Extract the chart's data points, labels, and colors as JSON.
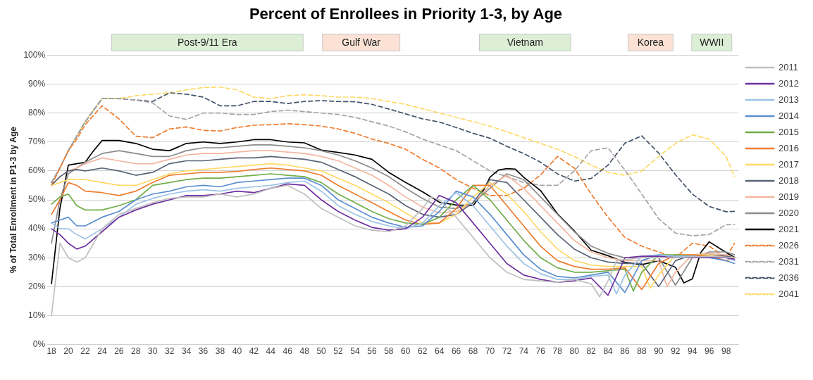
{
  "chart_data": {
    "type": "line",
    "title": "Percent of Enrollees in Priority 1-3, by Age",
    "ylabel": "% of Total Enrollment in P1-3 by Age",
    "xlim": [
      17.5,
      99.5
    ],
    "xticks": [
      18,
      20,
      22,
      24,
      26,
      28,
      30,
      32,
      34,
      36,
      38,
      40,
      42,
      44,
      46,
      48,
      50,
      52,
      54,
      56,
      58,
      60,
      62,
      64,
      66,
      68,
      70,
      72,
      74,
      76,
      78,
      80,
      82,
      84,
      86,
      88,
      90,
      92,
      94,
      96,
      98
    ],
    "ylim": [
      0,
      100
    ],
    "yticks": [
      {
        "value": 0,
        "label": "0%"
      },
      {
        "value": 10,
        "label": "10%"
      },
      {
        "value": 20,
        "label": "20%"
      },
      {
        "value": 30,
        "label": "30%"
      },
      {
        "value": 40,
        "label": "40%"
      },
      {
        "value": 50,
        "label": "50%"
      },
      {
        "value": 60,
        "label": "60%"
      },
      {
        "value": 70,
        "label": "70%"
      },
      {
        "value": 80,
        "label": "80%"
      },
      {
        "value": 90,
        "label": "90%"
      },
      {
        "value": 100,
        "label": "100%"
      }
    ],
    "grid": "y",
    "legend": "right",
    "marker": "none",
    "annotations": [
      "Post-9/11 Era",
      "Gulf War",
      "Vietnam",
      "Korea",
      "WWII"
    ],
    "series": [
      {
        "name": "2011",
        "color": "#bfbfbf",
        "line_style": "solid",
        "x": [
          18,
          19,
          20,
          21,
          22,
          24,
          26,
          28,
          30,
          32,
          34,
          36,
          38,
          40,
          42,
          44,
          46,
          48,
          50,
          52,
          54,
          56,
          58,
          60,
          62,
          63,
          64,
          66,
          68,
          70,
          72,
          74,
          76,
          78,
          80,
          82,
          83,
          84,
          85,
          88,
          92,
          96,
          99
        ],
        "values": [
          10,
          35,
          30,
          28.5,
          30,
          40,
          45,
          47,
          49,
          50.5,
          51,
          51,
          52,
          51,
          52,
          54,
          55,
          52,
          47,
          44,
          41,
          39.5,
          39,
          41,
          47,
          51,
          50,
          44,
          37,
          30,
          25,
          22.5,
          22,
          21.5,
          22.5,
          21,
          16.5,
          22,
          29,
          30,
          30,
          30.5,
          30
        ]
      },
      {
        "name": "2012",
        "color": "#7030a0",
        "line_style": "solid",
        "x": [
          18,
          19,
          20,
          21,
          22,
          24,
          26,
          28,
          30,
          32,
          34,
          36,
          38,
          40,
          42,
          44,
          46,
          48,
          50,
          52,
          54,
          56,
          58,
          60,
          62,
          64,
          66,
          68,
          70,
          72,
          74,
          76,
          78,
          80,
          82,
          84,
          86,
          88,
          90,
          92,
          94,
          96,
          98,
          99
        ],
        "values": [
          40,
          38,
          35,
          33,
          34,
          39,
          44,
          46.5,
          48.5,
          50,
          51.5,
          51.5,
          52,
          53,
          52.5,
          54,
          55.5,
          55,
          50,
          46,
          43,
          40.5,
          39.5,
          40,
          44,
          51.5,
          49,
          42,
          35,
          28,
          24,
          22.5,
          21.5,
          22,
          23,
          17,
          30,
          30.5,
          30.5,
          30,
          30,
          30,
          30,
          29.5
        ]
      },
      {
        "name": "2013",
        "color": "#9dc3e6",
        "line_style": "solid",
        "x": [
          18,
          19,
          20,
          21,
          22,
          24,
          26,
          28,
          30,
          32,
          34,
          36,
          38,
          40,
          42,
          44,
          46,
          48,
          50,
          52,
          54,
          56,
          58,
          60,
          62,
          64,
          66,
          68,
          70,
          72,
          74,
          76,
          78,
          80,
          82,
          84,
          85,
          86,
          88,
          90,
          92,
          94,
          96,
          98,
          99
        ],
        "values": [
          42,
          40,
          40,
          38,
          36.5,
          40,
          44,
          48.5,
          50.5,
          52,
          53,
          53.5,
          53,
          54,
          54.5,
          55,
          56,
          56.5,
          53,
          48,
          45,
          42.5,
          41,
          40,
          42,
          48,
          52.5,
          48,
          41,
          34,
          28,
          24.5,
          22.5,
          22.5,
          23.5,
          24,
          17.5,
          24,
          30.5,
          31,
          30.5,
          30.5,
          30,
          30,
          29
        ]
      },
      {
        "name": "2014",
        "color": "#5b8fd0",
        "line_style": "solid",
        "x": [
          18,
          19,
          20,
          21,
          22,
          24,
          26,
          28,
          30,
          32,
          34,
          36,
          38,
          40,
          42,
          44,
          46,
          48,
          50,
          52,
          54,
          56,
          58,
          60,
          62,
          64,
          66,
          68,
          70,
          72,
          74,
          76,
          78,
          80,
          82,
          84,
          86,
          88,
          90,
          92,
          94,
          96,
          98,
          99
        ],
        "values": [
          42,
          43,
          44,
          41,
          41,
          44,
          46,
          50,
          52,
          53,
          54.5,
          55,
          54.5,
          56,
          56.5,
          57,
          57.5,
          57.5,
          55,
          50,
          47,
          44,
          42,
          40.5,
          41,
          46,
          53,
          51,
          45,
          38,
          31,
          26,
          23.5,
          23,
          24,
          25,
          18,
          29,
          31,
          30.5,
          30.5,
          30,
          29,
          28
        ]
      },
      {
        "name": "2015",
        "color": "#70ad47",
        "line_style": "solid",
        "x": [
          18,
          19,
          20,
          21,
          22,
          24,
          26,
          28,
          30,
          32,
          34,
          36,
          38,
          40,
          42,
          44,
          46,
          48,
          50,
          52,
          54,
          56,
          58,
          60,
          62,
          64,
          66,
          68,
          70,
          72,
          74,
          76,
          78,
          80,
          82,
          84,
          86,
          87,
          88,
          90,
          92,
          94,
          96,
          98,
          99
        ],
        "values": [
          48.5,
          51,
          52,
          48,
          46.5,
          46.5,
          48,
          50,
          55,
          56,
          57,
          57.5,
          57.5,
          58,
          58.5,
          59,
          58.5,
          58,
          56,
          52,
          49,
          46,
          43.5,
          42,
          41.5,
          44,
          50,
          55,
          50,
          43,
          36,
          30,
          26.5,
          25,
          25,
          25.5,
          26,
          18.5,
          25,
          31,
          31,
          30.5,
          30,
          30,
          30
        ]
      },
      {
        "name": "2016",
        "color": "#ed7d31",
        "line_style": "solid",
        "x": [
          18,
          19,
          20,
          21,
          22,
          24,
          26,
          28,
          30,
          32,
          34,
          36,
          38,
          40,
          42,
          44,
          46,
          48,
          50,
          52,
          54,
          56,
          58,
          60,
          62,
          64,
          66,
          68,
          70,
          72,
          74,
          76,
          78,
          80,
          82,
          84,
          86,
          88,
          90,
          92,
          94,
          96,
          98,
          99
        ],
        "values": [
          45,
          50,
          56,
          55,
          53,
          52.5,
          51.5,
          53,
          56,
          58.5,
          59,
          59.5,
          59.5,
          59.8,
          60.5,
          61,
          60.5,
          60,
          58.5,
          55,
          52,
          49,
          46,
          43,
          41.5,
          42,
          47,
          55,
          55,
          48,
          41,
          34,
          29,
          27,
          26,
          26,
          26.5,
          19,
          28,
          31,
          31,
          30.5,
          29,
          30
        ]
      },
      {
        "name": "2017",
        "color": "#ffd966",
        "line_style": "solid",
        "x": [
          18,
          19,
          20,
          21,
          22,
          24,
          26,
          28,
          30,
          32,
          34,
          36,
          38,
          40,
          42,
          44,
          46,
          48,
          50,
          52,
          54,
          56,
          58,
          60,
          62,
          64,
          66,
          68,
          70,
          72,
          74,
          76,
          78,
          80,
          82,
          84,
          86,
          88,
          89,
          90,
          92,
          94,
          96,
          98,
          99
        ],
        "values": [
          55,
          56,
          57,
          57,
          57,
          56,
          55,
          55,
          57,
          59,
          60,
          60.5,
          61,
          61.5,
          62,
          62.5,
          62,
          61,
          60,
          57.5,
          55,
          52,
          49,
          45.5,
          42,
          42,
          45,
          51,
          56,
          52,
          46,
          39,
          33,
          29,
          27.5,
          27,
          27,
          27,
          19.5,
          24,
          31,
          31,
          31,
          30,
          30
        ]
      },
      {
        "name": "2018",
        "color": "#5a6478",
        "line_style": "solid",
        "x": [
          18,
          19,
          20,
          21,
          22,
          24,
          26,
          28,
          30,
          32,
          34,
          36,
          38,
          40,
          42,
          44,
          46,
          48,
          50,
          52,
          54,
          56,
          58,
          60,
          62,
          64,
          66,
          68,
          70,
          72,
          74,
          76,
          78,
          80,
          82,
          84,
          86,
          88,
          90,
          92,
          94,
          96,
          98,
          99
        ],
        "values": [
          55,
          58,
          60,
          60.5,
          60,
          61,
          60,
          58.5,
          59.5,
          62.5,
          63.5,
          63.5,
          64,
          64.5,
          64.5,
          65,
          64.5,
          64,
          63,
          60.5,
          58,
          55,
          52,
          48,
          45,
          44,
          45,
          49,
          57,
          56,
          50,
          44,
          38,
          33,
          30,
          28.5,
          28,
          28,
          20,
          29,
          31,
          31,
          30.5,
          30
        ]
      },
      {
        "name": "2019",
        "color": "#f4b6a0",
        "line_style": "solid",
        "x": [
          18,
          19,
          20,
          21,
          22,
          24,
          26,
          28,
          30,
          32,
          34,
          36,
          38,
          40,
          42,
          44,
          46,
          48,
          50,
          52,
          54,
          56,
          58,
          60,
          62,
          64,
          66,
          68,
          70,
          72,
          74,
          76,
          78,
          80,
          82,
          84,
          86,
          88,
          90,
          91,
          92,
          94,
          96,
          98,
          99
        ],
        "values": [
          55,
          58,
          60,
          61,
          62.5,
          64.5,
          63.5,
          62.5,
          62.5,
          64,
          65.5,
          66,
          66,
          66.5,
          67,
          67,
          66.5,
          66,
          65,
          63.5,
          61,
          58.5,
          55,
          51,
          47.5,
          45.5,
          46,
          49,
          55,
          58.5,
          54,
          48,
          42,
          36,
          32,
          30,
          29,
          29,
          29,
          20,
          25,
          31,
          31.5,
          31,
          30
        ]
      },
      {
        "name": "2020",
        "color": "#8c8c8c",
        "line_style": "solid",
        "x": [
          18,
          19,
          20,
          21,
          22,
          24,
          26,
          28,
          30,
          32,
          34,
          36,
          38,
          40,
          42,
          44,
          46,
          48,
          50,
          52,
          54,
          56,
          58,
          60,
          62,
          64,
          66,
          68,
          70,
          72,
          74,
          76,
          78,
          80,
          82,
          84,
          86,
          88,
          90,
          92,
          94,
          96,
          98,
          99
        ],
        "values": [
          35,
          50,
          59,
          61,
          63,
          66,
          67,
          66,
          65,
          65,
          67,
          68,
          68,
          68.5,
          69,
          69,
          68.5,
          68,
          67,
          65.5,
          63.5,
          61,
          58,
          54,
          50.5,
          47.5,
          47,
          49,
          54,
          59,
          57,
          51,
          45,
          39,
          34,
          31.5,
          30,
          30,
          30,
          20.5,
          30,
          32,
          32,
          31
        ]
      },
      {
        "name": "2021",
        "color": "#000000",
        "line_style": "solid",
        "x": [
          18,
          19,
          20,
          21,
          22,
          23,
          24,
          26,
          28,
          30,
          32,
          34,
          36,
          38,
          40,
          42,
          44,
          46,
          48,
          50,
          52,
          54,
          56,
          58,
          60,
          62,
          64,
          66,
          68,
          69,
          70,
          71,
          72,
          73,
          74,
          76,
          78,
          80,
          82,
          84,
          86,
          88,
          90,
          92,
          93,
          94,
          95,
          96,
          98,
          99
        ],
        "values": [
          21,
          47,
          62,
          62.5,
          63,
          67,
          70.5,
          70.5,
          69.5,
          67.5,
          67,
          69.5,
          70,
          69.5,
          70,
          70.8,
          70.8,
          70,
          69.7,
          67.2,
          66.4,
          65.5,
          64,
          59.5,
          56,
          52.8,
          49.2,
          48.2,
          48,
          52,
          57.8,
          60.3,
          60.8,
          60.6,
          57.8,
          53.2,
          45.2,
          39.3,
          32.6,
          30.7,
          28.4,
          27.6,
          29,
          26.7,
          21.3,
          22.7,
          31.8,
          35.5,
          31.8,
          30.1
        ]
      },
      {
        "name": "2026",
        "color": "#ed7d31",
        "line_style": "dashed",
        "x": [
          18,
          19,
          20,
          21,
          22,
          24,
          26,
          28,
          30,
          32,
          34,
          36,
          38,
          40,
          42,
          44,
          46,
          48,
          50,
          52,
          54,
          56,
          58,
          60,
          62,
          64,
          66,
          68,
          70,
          72,
          74,
          76,
          78,
          80,
          82,
          84,
          86,
          88,
          90,
          92,
          94,
          96,
          98,
          99
        ],
        "values": [
          55,
          61,
          67,
          71,
          76,
          82.5,
          78,
          72,
          71.5,
          74.5,
          75.2,
          74,
          73.8,
          75,
          75.8,
          76,
          76.3,
          76,
          75.5,
          74.5,
          73,
          71,
          69.5,
          67.5,
          64,
          61,
          57,
          54,
          51.5,
          51.5,
          54,
          58.6,
          65,
          61,
          52,
          44,
          37,
          34,
          32,
          30,
          35,
          34,
          30,
          35
        ]
      },
      {
        "name": "2031",
        "color": "#a5a5a5",
        "line_style": "dashed",
        "x": [
          18,
          19,
          20,
          21,
          22,
          24,
          26,
          28,
          30,
          32,
          34,
          36,
          38,
          40,
          42,
          44,
          46,
          48,
          50,
          52,
          54,
          56,
          58,
          60,
          62,
          64,
          66,
          68,
          70,
          72,
          74,
          76,
          78,
          80,
          82,
          84,
          86,
          88,
          90,
          92,
          94,
          96,
          98,
          99
        ],
        "values": [
          56,
          61,
          67,
          72,
          77,
          85,
          85,
          84.5,
          83.5,
          79,
          77.8,
          80,
          80,
          79.5,
          79.5,
          80.5,
          81,
          80.5,
          80,
          79.5,
          78.5,
          77,
          75.5,
          73.5,
          71,
          69,
          67,
          63.5,
          60,
          58,
          56,
          55,
          55,
          60,
          67,
          68,
          60.3,
          52,
          43.5,
          38.5,
          37.6,
          38,
          41.4,
          41.5
        ]
      },
      {
        "name": "2036",
        "color": "#44546a",
        "line_style": "dashed",
        "x": [
          18,
          19,
          20,
          21,
          22,
          24,
          26,
          28,
          30,
          32,
          34,
          36,
          38,
          40,
          42,
          44,
          46,
          48,
          50,
          52,
          54,
          56,
          58,
          60,
          62,
          64,
          66,
          68,
          70,
          72,
          74,
          76,
          78,
          80,
          82,
          84,
          86,
          88,
          90,
          92,
          94,
          96,
          98,
          99
        ],
        "values": [
          56,
          61,
          67,
          72,
          77,
          85,
          85,
          84.5,
          84,
          87,
          86.5,
          85.5,
          82.5,
          82.5,
          84,
          84,
          83.3,
          84,
          84.3,
          84,
          83.9,
          83,
          81.4,
          79.7,
          78,
          76.9,
          75,
          73,
          71.3,
          68.5,
          66,
          63,
          59,
          56.5,
          57.4,
          62,
          69.6,
          72.1,
          66.2,
          58.7,
          52,
          47.7,
          45.9,
          46
        ]
      },
      {
        "name": "2041",
        "color": "#ffd966",
        "line_style": "dashed",
        "x": [
          18,
          19,
          20,
          21,
          22,
          24,
          26,
          28,
          30,
          32,
          34,
          36,
          38,
          40,
          42,
          44,
          46,
          48,
          50,
          52,
          54,
          56,
          58,
          60,
          62,
          64,
          66,
          68,
          70,
          72,
          74,
          76,
          78,
          80,
          82,
          84,
          86,
          88,
          90,
          92,
          94,
          96,
          98,
          99
        ],
        "values": [
          55,
          61,
          67,
          72,
          77,
          85,
          85,
          86,
          86.5,
          87,
          88,
          88.8,
          89,
          88,
          85.5,
          85,
          86,
          86.3,
          86,
          85.5,
          85.5,
          85,
          84,
          83,
          81.5,
          80,
          78.5,
          77,
          75.5,
          73.5,
          71.5,
          69.5,
          67.5,
          65,
          62,
          59.5,
          58.5,
          60,
          65,
          69.5,
          72.5,
          71,
          65,
          58
        ]
      }
    ]
  }
}
